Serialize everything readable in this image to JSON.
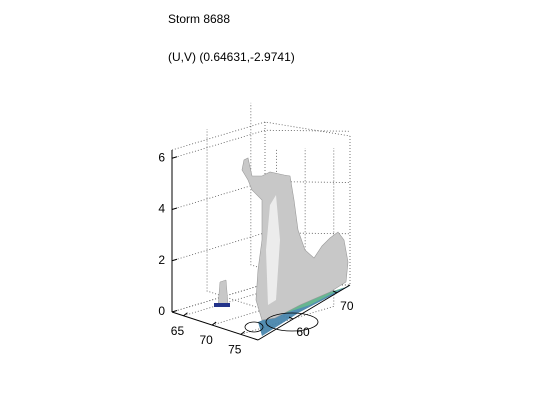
{
  "chart_data": {
    "type": "surface3d",
    "title": "Storm 8688",
    "subtitle": "(U,V) (0.64631,-2.9741)",
    "xlim": [
      63,
      78
    ],
    "xticks": [
      65,
      70,
      75
    ],
    "ylim": [
      52,
      73
    ],
    "yticks": [
      60,
      70
    ],
    "zlim": [
      0,
      6.4
    ],
    "zticks": [
      0,
      2,
      4,
      6
    ],
    "grid": true
  }
}
